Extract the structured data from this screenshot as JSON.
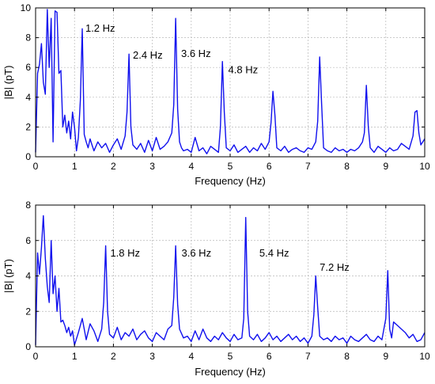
{
  "chart_data": [
    {
      "type": "line",
      "title": "",
      "xlabel": "Frequency (Hz)",
      "ylabel": "|B| (pT)",
      "xlim": [
        0,
        10
      ],
      "ylim": [
        0,
        10
      ],
      "xticks": [
        "0",
        "1",
        "2",
        "3",
        "4",
        "5",
        "6",
        "7",
        "8",
        "9",
        "10"
      ],
      "yticks": [
        "0",
        "2",
        "4",
        "6",
        "8",
        "10"
      ],
      "grid": true,
      "color": "#1010ee",
      "annotations": [
        {
          "text": "1.2 Hz",
          "x": 1.28,
          "y": 8.4
        },
        {
          "text": "2.4 Hz",
          "x": 2.5,
          "y": 6.6
        },
        {
          "text": "3.6 Hz",
          "x": 3.74,
          "y": 6.7
        },
        {
          "text": "4.8 Hz",
          "x": 4.95,
          "y": 5.6
        }
      ],
      "series": [
        {
          "x": [
            0.0,
            0.05,
            0.1,
            0.15,
            0.2,
            0.25,
            0.3,
            0.35,
            0.4,
            0.45,
            0.5,
            0.55,
            0.6,
            0.65,
            0.7,
            0.75,
            0.8,
            0.85,
            0.9,
            0.95,
            1.0,
            1.05,
            1.1,
            1.15,
            1.2,
            1.25,
            1.3,
            1.35,
            1.4,
            1.45,
            1.5,
            1.6,
            1.7,
            1.8,
            1.9,
            2.0,
            2.1,
            2.2,
            2.3,
            2.35,
            2.4,
            2.45,
            2.5,
            2.6,
            2.7,
            2.8,
            2.9,
            3.0,
            3.1,
            3.2,
            3.3,
            3.4,
            3.5,
            3.55,
            3.6,
            3.65,
            3.7,
            3.75,
            3.8,
            3.9,
            4.0,
            4.1,
            4.2,
            4.3,
            4.4,
            4.5,
            4.6,
            4.7,
            4.75,
            4.8,
            4.85,
            4.9,
            5.0,
            5.1,
            5.2,
            5.3,
            5.4,
            5.5,
            5.6,
            5.7,
            5.8,
            5.9,
            6.0,
            6.05,
            6.1,
            6.15,
            6.2,
            6.3,
            6.4,
            6.5,
            6.6,
            6.7,
            6.8,
            6.9,
            7.0,
            7.1,
            7.2,
            7.25,
            7.3,
            7.35,
            7.4,
            7.5,
            7.6,
            7.7,
            7.8,
            7.9,
            8.0,
            8.1,
            8.2,
            8.3,
            8.4,
            8.45,
            8.5,
            8.55,
            8.6,
            8.7,
            8.8,
            8.9,
            9.0,
            9.1,
            9.2,
            9.3,
            9.4,
            9.5,
            9.6,
            9.7,
            9.75,
            9.8,
            9.85,
            9.9,
            10.0
          ],
          "y": [
            0.3,
            5.6,
            6.2,
            7.6,
            5.0,
            4.2,
            9.9,
            6.0,
            9.3,
            1.0,
            9.8,
            9.7,
            5.6,
            5.8,
            2.0,
            2.8,
            1.6,
            2.4,
            1.2,
            3.0,
            2.0,
            0.4,
            1.3,
            3.8,
            8.6,
            1.5,
            1.0,
            0.6,
            1.2,
            0.8,
            0.4,
            1.0,
            0.6,
            0.9,
            0.3,
            0.8,
            1.2,
            0.5,
            1.4,
            3.0,
            6.9,
            2.0,
            0.8,
            0.5,
            0.9,
            0.3,
            1.1,
            0.4,
            1.3,
            0.5,
            0.7,
            1.0,
            1.6,
            3.5,
            9.3,
            3.2,
            1.0,
            0.6,
            0.4,
            0.5,
            0.3,
            1.3,
            0.4,
            0.6,
            0.2,
            0.7,
            0.5,
            0.3,
            2.0,
            6.4,
            3.0,
            0.6,
            0.4,
            0.8,
            0.3,
            0.5,
            0.7,
            0.3,
            0.6,
            0.4,
            0.9,
            0.5,
            1.0,
            2.3,
            4.4,
            2.8,
            0.6,
            0.4,
            0.7,
            0.3,
            0.5,
            0.6,
            0.4,
            0.3,
            0.6,
            0.5,
            1.0,
            2.4,
            6.7,
            3.6,
            0.6,
            0.4,
            0.3,
            0.6,
            0.4,
            0.5,
            0.3,
            0.5,
            0.4,
            0.6,
            1.0,
            1.6,
            4.8,
            2.0,
            0.6,
            0.3,
            0.7,
            0.5,
            0.3,
            0.6,
            0.4,
            0.5,
            0.9,
            0.7,
            0.5,
            1.4,
            3.0,
            3.1,
            1.6,
            0.8,
            1.2
          ]
        }
      ]
    },
    {
      "type": "line",
      "title": "",
      "xlabel": "Frequency (Hz)",
      "ylabel": "|B| (pT)",
      "xlim": [
        0,
        10
      ],
      "ylim": [
        0,
        8
      ],
      "xticks": [
        "0",
        "1",
        "2",
        "3",
        "4",
        "5",
        "6",
        "7",
        "8",
        "9",
        "10"
      ],
      "yticks": [
        "0",
        "2",
        "4",
        "6",
        "8"
      ],
      "grid": true,
      "color": "#1010ee",
      "annotations": [
        {
          "text": "1.8 Hz",
          "x": 1.92,
          "y": 5.1
        },
        {
          "text": "3.6 Hz",
          "x": 3.75,
          "y": 5.1
        },
        {
          "text": "5.4 Hz",
          "x": 5.75,
          "y": 5.1
        },
        {
          "text": "7.2 Hz",
          "x": 7.3,
          "y": 4.3
        }
      ],
      "series": [
        {
          "x": [
            0.0,
            0.05,
            0.1,
            0.15,
            0.2,
            0.25,
            0.3,
            0.35,
            0.4,
            0.45,
            0.5,
            0.55,
            0.6,
            0.65,
            0.7,
            0.75,
            0.8,
            0.85,
            0.9,
            0.95,
            1.0,
            1.1,
            1.2,
            1.3,
            1.4,
            1.5,
            1.6,
            1.7,
            1.75,
            1.8,
            1.85,
            1.9,
            2.0,
            2.1,
            2.2,
            2.3,
            2.4,
            2.5,
            2.6,
            2.7,
            2.8,
            2.9,
            3.0,
            3.1,
            3.2,
            3.3,
            3.4,
            3.5,
            3.55,
            3.6,
            3.65,
            3.7,
            3.8,
            3.9,
            4.0,
            4.1,
            4.2,
            4.3,
            4.4,
            4.5,
            4.6,
            4.7,
            4.8,
            4.9,
            5.0,
            5.1,
            5.2,
            5.3,
            5.35,
            5.4,
            5.45,
            5.5,
            5.6,
            5.7,
            5.8,
            5.9,
            6.0,
            6.1,
            6.2,
            6.3,
            6.4,
            6.5,
            6.6,
            6.7,
            6.8,
            6.9,
            7.0,
            7.1,
            7.15,
            7.2,
            7.25,
            7.3,
            7.4,
            7.5,
            7.6,
            7.7,
            7.8,
            7.9,
            8.0,
            8.1,
            8.2,
            8.3,
            8.4,
            8.5,
            8.6,
            8.7,
            8.8,
            8.9,
            9.0,
            9.05,
            9.1,
            9.15,
            9.2,
            9.3,
            9.4,
            9.5,
            9.6,
            9.7,
            9.8,
            9.9,
            10.0
          ],
          "y": [
            0.1,
            5.3,
            4.1,
            5.6,
            7.4,
            5.0,
            3.4,
            2.5,
            6.0,
            3.0,
            4.0,
            2.0,
            3.3,
            1.4,
            1.5,
            1.2,
            0.8,
            1.1,
            0.6,
            0.9,
            0.1,
            0.8,
            1.6,
            0.4,
            1.3,
            0.9,
            0.3,
            1.0,
            2.5,
            5.7,
            2.0,
            0.7,
            0.5,
            1.1,
            0.4,
            0.8,
            0.6,
            1.0,
            0.4,
            0.7,
            0.9,
            0.5,
            0.3,
            0.8,
            0.6,
            0.4,
            1.0,
            1.2,
            2.8,
            5.7,
            2.4,
            1.0,
            0.5,
            0.6,
            0.3,
            0.9,
            0.4,
            1.0,
            0.5,
            0.3,
            0.6,
            0.4,
            0.8,
            0.5,
            0.3,
            0.7,
            0.4,
            0.5,
            1.6,
            7.3,
            2.0,
            0.6,
            0.4,
            0.7,
            0.3,
            0.5,
            0.8,
            0.4,
            0.6,
            0.3,
            0.5,
            0.7,
            0.4,
            0.6,
            0.3,
            0.5,
            0.2,
            0.6,
            1.8,
            4.0,
            2.2,
            0.6,
            0.4,
            0.5,
            0.3,
            0.6,
            0.4,
            0.5,
            0.2,
            0.6,
            0.4,
            0.3,
            0.5,
            0.7,
            0.4,
            0.3,
            0.6,
            0.4,
            1.6,
            4.3,
            1.0,
            0.5,
            1.4,
            1.2,
            1.0,
            0.8,
            0.5,
            0.7,
            0.3,
            0.4,
            0.8
          ]
        }
      ]
    }
  ]
}
